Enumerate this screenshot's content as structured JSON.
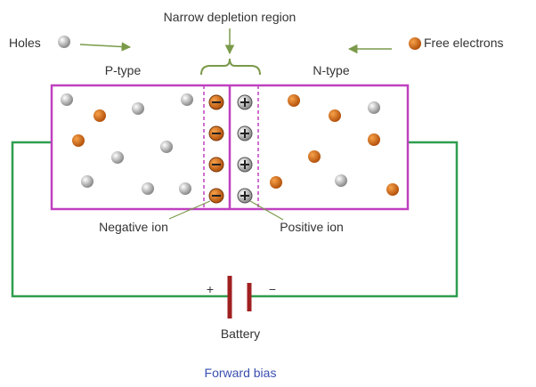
{
  "title": "Narrow depletion region",
  "legend": {
    "holes": "Holes",
    "electrons": "Free electrons"
  },
  "regions": {
    "p": "P-type",
    "n": "N-type"
  },
  "ions": {
    "negative": "Negative ion",
    "positive": "Positive ion"
  },
  "battery": {
    "plus": "+",
    "minus": "−",
    "label": "Battery"
  },
  "caption": "Forward bias"
}
